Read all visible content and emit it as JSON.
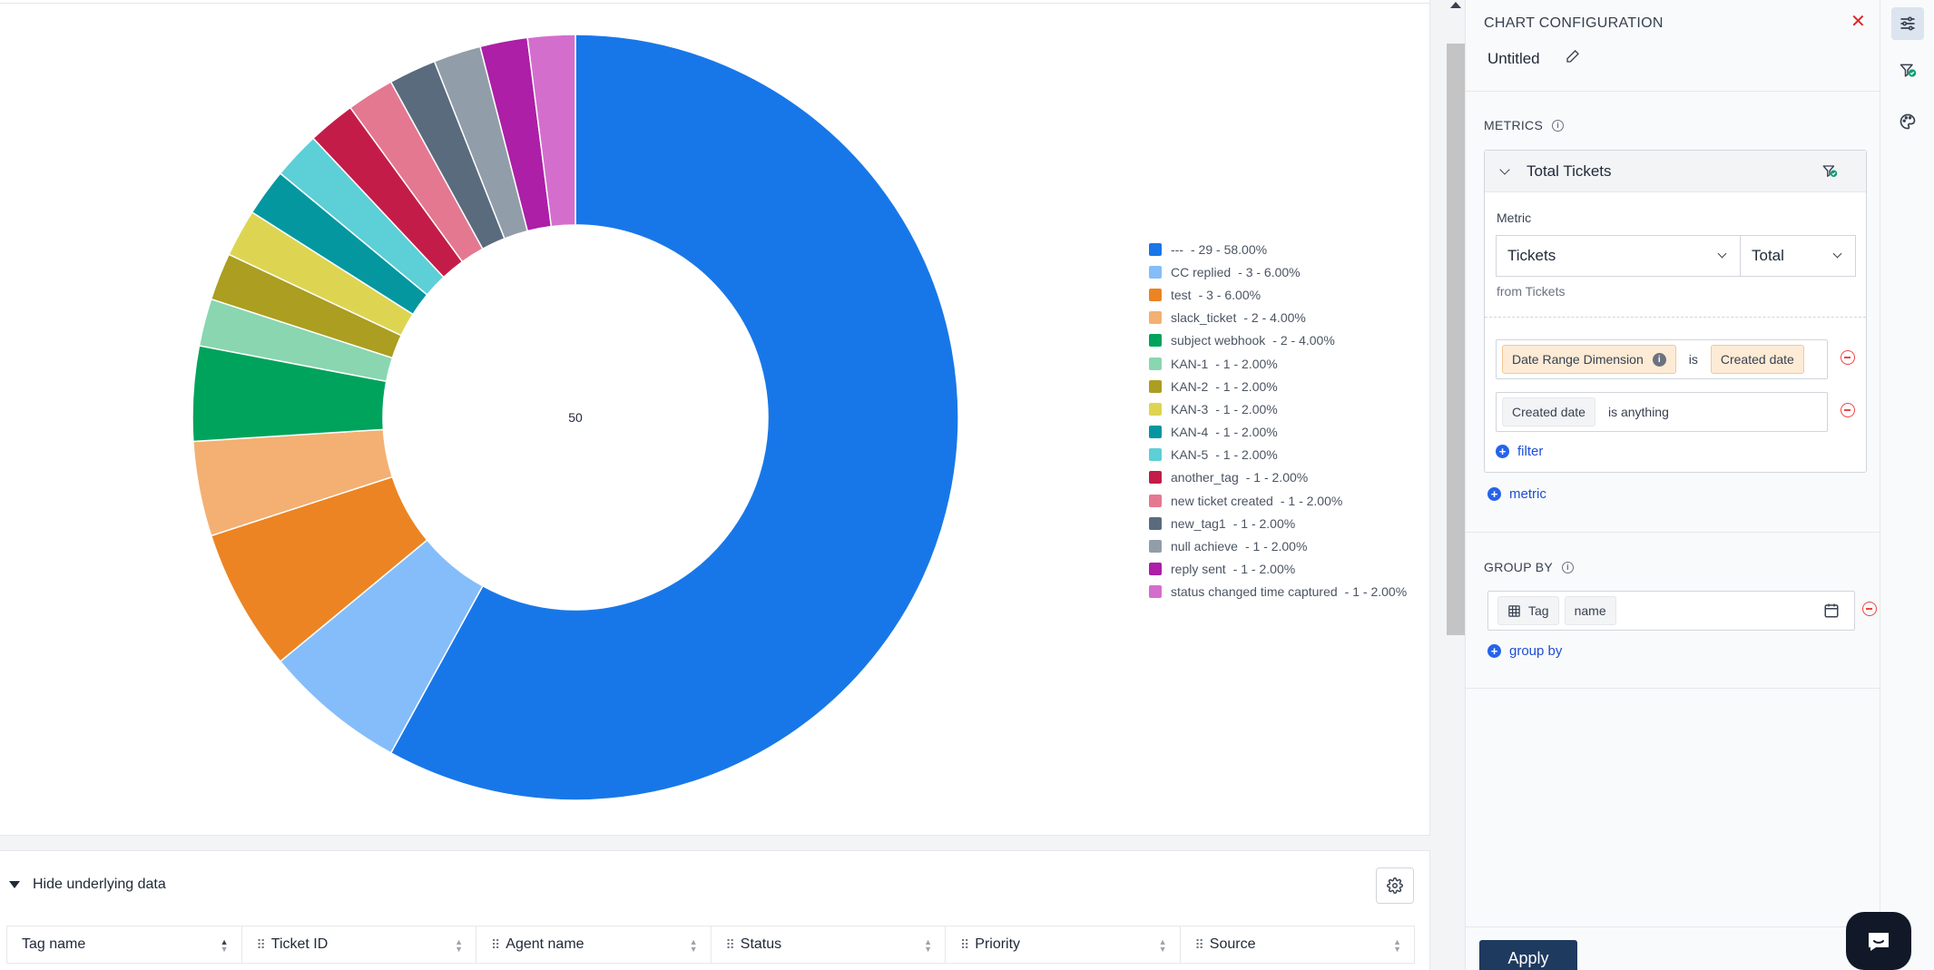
{
  "chart": {
    "center_label": "50",
    "legend": [
      {
        "name": "---",
        "info": "- 29 - 58.00%",
        "value": 29,
        "color": "#1877e8"
      },
      {
        "name": "CC replied",
        "info": "- 3 - 6.00%",
        "value": 3,
        "color": "#85bdfa"
      },
      {
        "name": "test",
        "info": "- 3 - 6.00%",
        "value": 3,
        "color": "#ec8423"
      },
      {
        "name": "slack_ticket",
        "info": "- 2 - 4.00%",
        "value": 2,
        "color": "#f3b072"
      },
      {
        "name": "subject webhook",
        "info": "- 2 - 4.00%",
        "value": 2,
        "color": "#00a35c"
      },
      {
        "name": "KAN-1",
        "info": "- 1 - 2.00%",
        "value": 1,
        "color": "#89d6b0"
      },
      {
        "name": "KAN-2",
        "info": "- 1 - 2.00%",
        "value": 1,
        "color": "#ab9e21"
      },
      {
        "name": "KAN-3",
        "info": "- 1 - 2.00%",
        "value": 1,
        "color": "#ddd552"
      },
      {
        "name": "KAN-4",
        "info": "- 1 - 2.00%",
        "value": 1,
        "color": "#0497a0"
      },
      {
        "name": "KAN-5",
        "info": "- 1 - 2.00%",
        "value": 1,
        "color": "#5ccfd7"
      },
      {
        "name": "another_tag",
        "info": "- 1 - 2.00%",
        "value": 1,
        "color": "#c41c48"
      },
      {
        "name": "new ticket created",
        "info": "- 1 - 2.00%",
        "value": 1,
        "color": "#e47891"
      },
      {
        "name": "new_tag1",
        "info": "- 1 - 2.00%",
        "value": 1,
        "color": "#5a6b7e"
      },
      {
        "name": "null achieve",
        "info": "- 1 - 2.00%",
        "value": 1,
        "color": "#919ea9"
      },
      {
        "name": "reply sent",
        "info": "- 1 - 2.00%",
        "value": 1,
        "color": "#ac1fa6"
      },
      {
        "name": "status changed time captured",
        "info": "- 1 - 2.00%",
        "value": 1,
        "color": "#d46ecd"
      }
    ]
  },
  "chart_data": {
    "type": "pie",
    "categories": [
      "---",
      "CC replied",
      "test",
      "slack_ticket",
      "subject webhook",
      "KAN-1",
      "KAN-2",
      "KAN-3",
      "KAN-4",
      "KAN-5",
      "another_tag",
      "new ticket created",
      "new_tag1",
      "null achieve",
      "reply sent",
      "status changed time captured"
    ],
    "values": [
      29,
      3,
      3,
      2,
      2,
      1,
      1,
      1,
      1,
      1,
      1,
      1,
      1,
      1,
      1,
      1
    ],
    "center_total": 50,
    "legend_position": "right"
  },
  "data_section": {
    "toggle_label": "Hide underlying data",
    "columns": [
      {
        "label": "Tag name",
        "grip": false,
        "sorted": true
      },
      {
        "label": "Ticket ID",
        "grip": true,
        "sorted": false
      },
      {
        "label": "Agent name",
        "grip": true,
        "sorted": false
      },
      {
        "label": "Status",
        "grip": true,
        "sorted": false
      },
      {
        "label": "Priority",
        "grip": true,
        "sorted": false
      },
      {
        "label": "Source",
        "grip": true,
        "sorted": false
      }
    ]
  },
  "panel": {
    "title": "CHART CONFIGURATION",
    "chart_name": "Untitled",
    "metrics_label": "METRICS",
    "metric": {
      "name": "Total Tickets",
      "label": "Metric",
      "select_value": "Tickets",
      "aggregate_value": "Total",
      "from_text": "from Tickets"
    },
    "filters": [
      {
        "field": "Date Range Dimension",
        "operator": "is",
        "value": "Created date"
      },
      {
        "field": "Created date",
        "operator": "is anything"
      }
    ],
    "add_filter_label": "filter",
    "add_metric_label": "metric",
    "group_by_label": "GROUP BY",
    "group_by": {
      "table": "Tag",
      "field": "name"
    },
    "add_group_by_label": "group by",
    "apply_label": "Apply"
  },
  "colors": {
    "accent": "#1e3a5f",
    "link": "#1d4ed8",
    "danger": "#ef4444",
    "filter_ok": "#0f9d75"
  }
}
